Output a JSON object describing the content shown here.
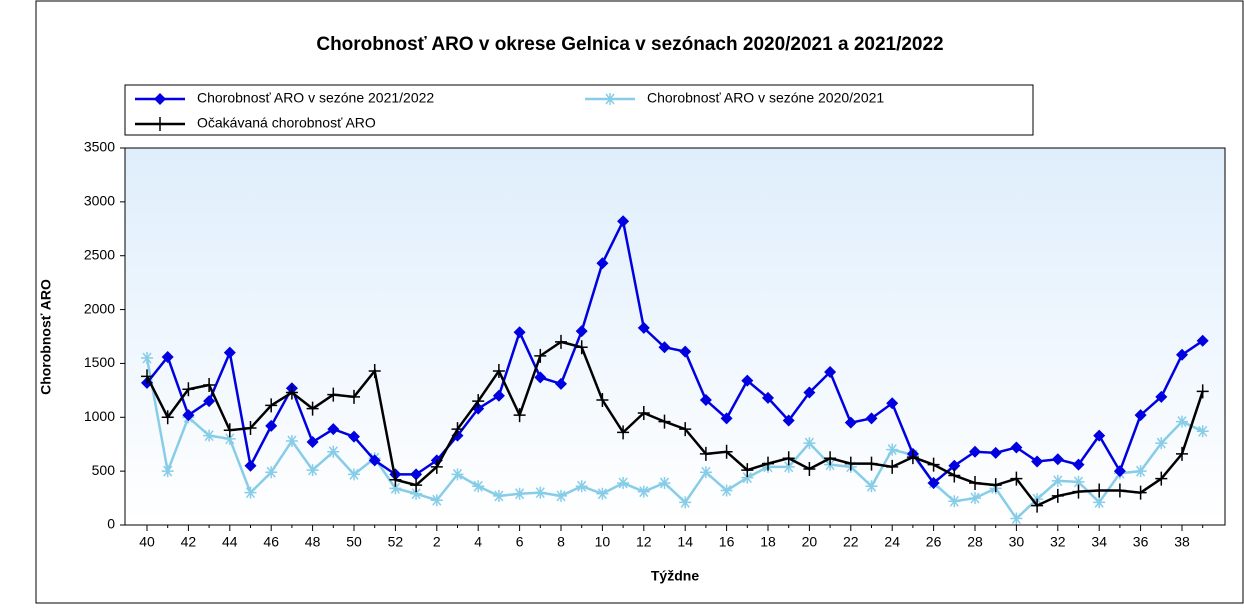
{
  "chart_data": {
    "type": "line",
    "title": "Chorobnosť ARO v okrese Gelnica v sezónach 2020/2021 a 2021/2022",
    "y_label": "Chorobnosť ARO",
    "x_label": "Týždne",
    "categories": [
      40,
      null,
      42,
      null,
      44,
      null,
      46,
      null,
      48,
      null,
      50,
      null,
      52,
      null,
      2,
      null,
      4,
      null,
      6,
      null,
      8,
      null,
      10,
      null,
      12,
      null,
      14,
      null,
      16,
      null,
      18,
      null,
      20,
      null,
      22,
      null,
      24,
      null,
      26,
      null,
      28,
      null,
      30,
      null,
      32,
      null,
      34,
      null,
      36,
      null,
      38,
      null
    ],
    "series": [
      {
        "name": "Chorobnosť ARO v sezóne 2021/2022",
        "color": "#0000e0",
        "marker": "diamond",
        "values": [
          1320,
          1560,
          1020,
          1150,
          1600,
          550,
          920,
          1270,
          770,
          890,
          820,
          600,
          470,
          470,
          600,
          830,
          1080,
          1200,
          1790,
          1370,
          1310,
          1800,
          2430,
          2820,
          1830,
          1650,
          1610,
          1160,
          990,
          1340,
          1180,
          970,
          1230,
          1420,
          950,
          990,
          1130,
          660,
          390,
          550,
          680,
          670,
          720,
          590,
          610,
          560,
          830,
          500,
          1020,
          1190,
          1580,
          1710
        ]
      },
      {
        "name": "Chorobnosť ARO v sezóne 2020/2021",
        "color": "#87cde8",
        "marker": "asterisk",
        "values": [
          1550,
          500,
          1000,
          830,
          800,
          300,
          490,
          780,
          510,
          680,
          470,
          620,
          340,
          290,
          230,
          470,
          360,
          270,
          290,
          300,
          270,
          360,
          290,
          390,
          310,
          390,
          210,
          490,
          320,
          440,
          540,
          540,
          760,
          560,
          540,
          360,
          700,
          650,
          390,
          220,
          250,
          340,
          60,
          240,
          410,
          400,
          210,
          480,
          500,
          760,
          960,
          870
        ]
      },
      {
        "name": "Očakávaná chorobnosť ARO",
        "color": "#000000",
        "marker": "plus",
        "values": [
          1380,
          1000,
          1260,
          1300,
          880,
          900,
          1110,
          1230,
          1080,
          1210,
          1190,
          1430,
          420,
          370,
          540,
          890,
          1150,
          1430,
          1020,
          1570,
          1700,
          1650,
          1160,
          860,
          1040,
          960,
          890,
          660,
          680,
          510,
          570,
          620,
          520,
          620,
          570,
          570,
          540,
          630,
          560,
          460,
          390,
          370,
          430,
          180,
          270,
          310,
          320,
          320,
          300,
          430,
          660,
          1240
        ]
      }
    ],
    "ylim": [
      0,
      3500
    ],
    "yticks": [
      0,
      500,
      1000,
      1500,
      2000,
      2500,
      3000,
      3500
    ]
  }
}
